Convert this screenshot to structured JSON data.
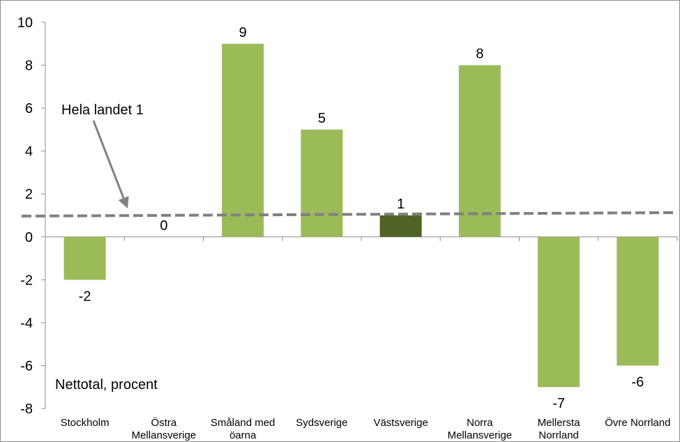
{
  "chart_data": {
    "type": "bar",
    "title": "",
    "xlabel": "",
    "ylabel": "",
    "ylim": [
      -8,
      10
    ],
    "yticks": [
      10,
      8,
      6,
      4,
      2,
      0,
      -2,
      -4,
      -6,
      -8
    ],
    "grid": false,
    "categories": [
      [
        "Stockholm"
      ],
      [
        "Östra",
        "Mellansverige"
      ],
      [
        "Småland med",
        "öarna"
      ],
      [
        "Sydsverige"
      ],
      [
        "Västsverige"
      ],
      [
        "Norra",
        "Mellansverige"
      ],
      [
        "Mellersta",
        "Norrland"
      ],
      [
        "Övre Norrland"
      ]
    ],
    "values": [
      -2,
      0,
      9,
      5,
      1,
      8,
      -7,
      -6
    ],
    "data_labels": [
      "-2",
      "0",
      "9",
      "5",
      "1",
      "8",
      "-7",
      "-6"
    ],
    "highlight_index": 4,
    "bar_color": "#9bbb59",
    "highlight_color": "#4f6228",
    "reference_line": {
      "value": 1,
      "label": "Hela landet 1",
      "color": "#808080",
      "style": "dashed"
    },
    "annotation": "Nettotal, procent"
  }
}
